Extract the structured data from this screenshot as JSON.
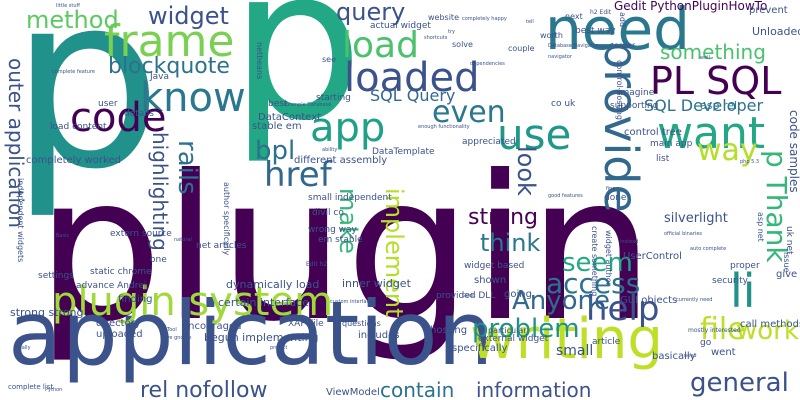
{
  "title": "",
  "words": [
    {
      "text": "plugin",
      "color": "#440154",
      "vertical": false
    },
    {
      "text": "p",
      "color": "#21918c",
      "vertical": false
    },
    {
      "text": "p",
      "color": "#22a884",
      "vertical": false
    },
    {
      "text": "application",
      "color": "#3b528b",
      "vertical": false
    },
    {
      "text": "plugin system",
      "color": "#a0da39",
      "vertical": false
    },
    {
      "text": "need",
      "color": "#2a788e",
      "vertical": false
    },
    {
      "text": "PL SQL",
      "color": "#440154",
      "vertical": false
    },
    {
      "text": "provide",
      "color": "#31688e",
      "vertical": true
    },
    {
      "text": "writing",
      "color": "#bddf26",
      "vertical": false
    },
    {
      "text": "loaded",
      "color": "#3b528b",
      "vertical": false
    },
    {
      "text": "frame",
      "color": "#7ad151",
      "vertical": false
    },
    {
      "text": "load",
      "color": "#4ac16d",
      "vertical": false
    },
    {
      "text": "know",
      "color": "#2a788e",
      "vertical": false
    },
    {
      "text": "code",
      "color": "#440154",
      "vertical": false
    },
    {
      "text": "app",
      "color": "#1fa187",
      "vertical": false
    },
    {
      "text": "use",
      "color": "#1f988b",
      "vertical": false
    },
    {
      "text": "want",
      "color": "#22a884",
      "vertical": false
    },
    {
      "text": "help",
      "color": "#3b528b",
      "vertical": false
    },
    {
      "text": "li",
      "color": "#21918c",
      "vertical": false
    },
    {
      "text": "file",
      "color": "#bddf26",
      "vertical": false
    },
    {
      "text": "access",
      "color": "#2c728e",
      "vertical": false
    },
    {
      "text": "href",
      "color": "#31688e",
      "vertical": false
    },
    {
      "text": "outer application",
      "color": "#3b528b",
      "vertical": true
    },
    {
      "text": "method",
      "color": "#5ec962",
      "vertical": false
    },
    {
      "text": "widget",
      "color": "#3b528b",
      "vertical": false
    },
    {
      "text": "blockquote",
      "color": "#2c728e",
      "vertical": false
    },
    {
      "text": "query",
      "color": "#3b528b",
      "vertical": false
    },
    {
      "text": "rails",
      "color": "#2c728e",
      "vertical": true
    },
    {
      "text": "highlighting",
      "color": "#3b528b",
      "vertical": true
    },
    {
      "text": "bpl",
      "color": "#2c728e",
      "vertical": false
    },
    {
      "text": "make",
      "color": "#35b779",
      "vertical": true
    },
    {
      "text": "implement",
      "color": "#b5de2b",
      "vertical": true
    },
    {
      "text": "even",
      "color": "#2a788e",
      "vertical": false
    },
    {
      "text": "look",
      "color": "#3b528b",
      "vertical": true
    },
    {
      "text": "strong",
      "color": "#440154",
      "vertical": false
    },
    {
      "text": "think",
      "color": "#2a788e",
      "vertical": false
    },
    {
      "text": "seem",
      "color": "#22a884",
      "vertical": false
    },
    {
      "text": "Anyone",
      "color": "#31688e",
      "vertical": false
    },
    {
      "text": "problem",
      "color": "#21918c",
      "vertical": false
    },
    {
      "text": "work",
      "color": "#bddf26",
      "vertical": false
    },
    {
      "text": "general",
      "color": "#3b528b",
      "vertical": false
    },
    {
      "text": "contain",
      "color": "#2c728e",
      "vertical": false
    },
    {
      "text": "information",
      "color": "#3b528b",
      "vertical": false
    },
    {
      "text": "rel nofollow",
      "color": "#3b528b",
      "vertical": false
    },
    {
      "text": "way",
      "color": "#b5de2b",
      "vertical": false
    },
    {
      "text": "p Thank",
      "color": "#35b779",
      "vertical": true
    },
    {
      "text": "something",
      "color": "#4ac16d",
      "vertical": false
    },
    {
      "text": "SQL Query",
      "color": "#31688e",
      "vertical": false
    },
    {
      "text": "SQL Developer",
      "color": "#2c728e",
      "vertical": false
    },
    {
      "text": "Gedit PythonPluginHowTo",
      "color": "#440154",
      "vertical": false
    },
    {
      "text": "Unloaded",
      "color": "#3b528b",
      "vertical": false
    },
    {
      "text": "prevent",
      "color": "#3b528b",
      "vertical": false
    },
    {
      "text": "code samples",
      "color": "#3b528b",
      "vertical": true
    },
    {
      "text": "asp rel",
      "color": "#2a788e",
      "vertical": false
    },
    {
      "text": "silverlight",
      "color": "#3b528b",
      "vertical": false
    },
    {
      "text": "control tree",
      "color": "#3b528b",
      "vertical": false
    },
    {
      "text": "DataContext",
      "color": "#3b528b",
      "vertical": false
    },
    {
      "text": "stable em",
      "color": "#3b528b",
      "vertical": false
    },
    {
      "text": "load content",
      "color": "#3b528b",
      "vertical": false
    },
    {
      "text": "completely worked",
      "color": "#3b528b",
      "vertical": false
    },
    {
      "text": "different assembly",
      "color": "#3b528b",
      "vertical": false
    },
    {
      "text": "dynamically load",
      "color": "#3b528b",
      "vertical": false
    },
    {
      "text": "inner widget",
      "color": "#3b528b",
      "vertical": false
    },
    {
      "text": "certain interface",
      "color": "#3b528b",
      "vertical": false
    },
    {
      "text": "begun implementing",
      "color": "#3b528b",
      "vertical": false
    },
    {
      "text": "strong strong",
      "color": "#3b528b",
      "vertical": false
    },
    {
      "text": "ViewModel",
      "color": "#3b528b",
      "vertical": false
    },
    {
      "text": "includes",
      "color": "#3b528b",
      "vertical": false
    },
    {
      "text": "hosting",
      "color": "#3b528b",
      "vertical": false
    },
    {
      "text": "specifically",
      "color": "#3b528b",
      "vertical": false
    },
    {
      "text": "small",
      "color": "#3b528b",
      "vertical": false
    },
    {
      "text": "article",
      "color": "#3b528b",
      "vertical": false
    },
    {
      "text": "call methods",
      "color": "#3b528b",
      "vertical": false
    },
    {
      "text": "give",
      "color": "#3b528b",
      "vertical": false
    },
    {
      "text": "security",
      "color": "#3b528b",
      "vertical": false
    },
    {
      "text": "proper",
      "color": "#3b528b",
      "vertical": false
    },
    {
      "text": "UserControl",
      "color": "#3b528b",
      "vertical": false
    },
    {
      "text": "GUI objects",
      "color": "#3b528b",
      "vertical": false
    },
    {
      "text": "basically",
      "color": "#3b528b",
      "vertical": false
    },
    {
      "text": "went",
      "color": "#3b528b",
      "vertical": false
    },
    {
      "text": "shown",
      "color": "#3b528b",
      "vertical": false
    },
    {
      "text": "going",
      "color": "#3b528b",
      "vertical": false
    },
    {
      "text": "finding",
      "color": "#3b528b",
      "vertical": false
    },
    {
      "text": "directory",
      "color": "#3b528b",
      "vertical": false
    },
    {
      "text": "uploaded",
      "color": "#3b528b",
      "vertical": false
    },
    {
      "text": "encouraged",
      "color": "#3b528b",
      "vertical": false
    },
    {
      "text": "settings",
      "color": "#3b528b",
      "vertical": false
    },
    {
      "text": "advance Andrej",
      "color": "#3b528b",
      "vertical": false
    },
    {
      "text": "extern source",
      "color": "#3b528b",
      "vertical": false
    },
    {
      "text": "net articles",
      "color": "#3b528b",
      "vertical": false
    },
    {
      "text": "em stable",
      "color": "#3b528b",
      "vertical": false
    },
    {
      "text": "wrong way",
      "color": "#3b528b",
      "vertical": false
    },
    {
      "text": "static chrome",
      "color": "#3b528b",
      "vertical": false
    },
    {
      "text": "one",
      "color": "#3b528b",
      "vertical": false
    },
    {
      "text": "divil co",
      "color": "#3b528b",
      "vertical": false
    },
    {
      "text": "small independent",
      "color": "#3b528b",
      "vertical": false
    },
    {
      "text": "widget based",
      "color": "#3b528b",
      "vertical": false
    },
    {
      "text": "DataTemplate",
      "color": "#3b528b",
      "vertical": false
    },
    {
      "text": "starting",
      "color": "#3b528b",
      "vertical": false
    },
    {
      "text": "best",
      "color": "#3b528b",
      "vertical": false
    },
    {
      "text": "co uk",
      "color": "#3b528b",
      "vertical": false
    },
    {
      "text": "appreciated",
      "color": "#3b528b",
      "vertical": false
    },
    {
      "text": "list",
      "color": "#3b528b",
      "vertical": false
    },
    {
      "text": "main app",
      "color": "#3b528b",
      "vertical": false
    },
    {
      "text": "imagine",
      "color": "#3b528b",
      "vertical": false
    },
    {
      "text": "supporting",
      "color": "#3b528b",
      "vertical": false
    },
    {
      "text": "done",
      "color": "#3b528b",
      "vertical": false
    },
    {
      "text": "user",
      "color": "#3b528b",
      "vertical": false
    },
    {
      "text": "details",
      "color": "#3b528b",
      "vertical": false
    },
    {
      "text": "Java",
      "color": "#3b528b",
      "vertical": false
    },
    {
      "text": "actual widget",
      "color": "#3b528b",
      "vertical": false
    },
    {
      "text": "website",
      "color": "#3b528b",
      "vertical": false
    },
    {
      "text": "next",
      "color": "#3b528b",
      "vertical": false
    },
    {
      "text": "best way",
      "color": "#3b528b",
      "vertical": false
    },
    {
      "text": "order",
      "color": "#3b528b",
      "vertical": false
    },
    {
      "text": "solve",
      "color": "#3b528b",
      "vertical": false
    },
    {
      "text": "couple",
      "color": "#3b528b",
      "vertical": false
    },
    {
      "text": "worth",
      "color": "#3b528b",
      "vertical": false
    },
    {
      "text": "see",
      "color": "#3b528b",
      "vertical": false
    },
    {
      "text": "XAP File",
      "color": "#3b528b",
      "vertical": false
    },
    {
      "text": "questions",
      "color": "#3b528b",
      "vertical": false
    },
    {
      "text": "particular",
      "color": "#3b528b",
      "vertical": false
    },
    {
      "text": "external widget",
      "color": "#3b528b",
      "vertical": false
    },
    {
      "text": "provided DLL",
      "color": "#3b528b",
      "vertical": false
    },
    {
      "text": "author specifically",
      "color": "#3b528b",
      "vertical": true
    },
    {
      "text": "independent widgets",
      "color": "#3b528b",
      "vertical": true
    },
    {
      "text": "netbeans",
      "color": "#3b528b",
      "vertical": true
    },
    {
      "text": "widget author",
      "color": "#3b528b",
      "vertical": true
    },
    {
      "text": "create something",
      "color": "#3b528b",
      "vertical": true
    },
    {
      "text": "control hosting",
      "color": "#3b528b",
      "vertical": true
    },
    {
      "text": "uk net",
      "color": "#3b528b",
      "vertical": true
    },
    {
      "text": "issue",
      "color": "#3b528b",
      "vertical": true
    },
    {
      "text": "add",
      "color": "#3b528b",
      "vertical": true
    },
    {
      "text": "asp net",
      "color": "#3b528b",
      "vertical": true
    },
    {
      "text": "mostly interested",
      "color": "#3b528b",
      "vertical": false
    },
    {
      "text": "h2 Edit",
      "color": "#3b528b",
      "vertical": false
    },
    {
      "text": "Edit h2",
      "color": "#3b528b",
      "vertical": false
    },
    {
      "text": "complete list",
      "color": "#3b528b",
      "vertical": false
    },
    {
      "text": "complete feature",
      "color": "#3b528b",
      "vertical": false
    },
    {
      "text": "little stuff",
      "color": "#3b528b",
      "vertical": false
    },
    {
      "text": "completely happy",
      "color": "#3b528b",
      "vertical": false
    },
    {
      "text": "Database Navigator",
      "color": "#3b528b",
      "vertical": false
    },
    {
      "text": "navigator",
      "color": "#3b528b",
      "vertical": false
    },
    {
      "text": "currently need",
      "color": "#3b528b",
      "vertical": false
    },
    {
      "text": "enough functionality",
      "color": "#3b528b",
      "vertical": false
    },
    {
      "text": "official binaries",
      "color": "#3b528b",
      "vertical": false
    },
    {
      "text": "auto complete",
      "color": "#3b528b",
      "vertical": false
    },
    {
      "text": "good features",
      "color": "#3b528b",
      "vertical": false
    },
    {
      "text": "try",
      "color": "#3b528b",
      "vertical": false
    },
    {
      "text": "tell",
      "color": "#3b528b",
      "vertical": false
    },
    {
      "text": "fine",
      "color": "#3b528b",
      "vertical": false
    },
    {
      "text": "Python",
      "color": "#3b528b",
      "vertical": false
    },
    {
      "text": "Ideally",
      "color": "#3b528b",
      "vertical": false
    },
    {
      "text": "Tool",
      "color": "#3b528b",
      "vertical": false
    },
    {
      "text": "love gnome",
      "color": "#3b528b",
      "vertical": false
    },
    {
      "text": "php 5.3",
      "color": "#3b528b",
      "vertical": false
    },
    {
      "text": "Basic",
      "color": "#3b528b",
      "vertical": false
    },
    {
      "text": "go",
      "color": "#3b528b",
      "vertical": false
    },
    {
      "text": "need",
      "color": "#3b528b",
      "vertical": false
    },
    {
      "text": "project",
      "color": "#3b528b",
      "vertical": false
    },
    {
      "text": "instead",
      "color": "#3b528b",
      "vertical": false
    },
    {
      "text": "Example Database",
      "color": "#3b528b",
      "vertical": false
    },
    {
      "text": "well",
      "color": "#3b528b",
      "vertical": false
    },
    {
      "text": "ability",
      "color": "#3b528b",
      "vertical": false
    },
    {
      "text": "natural",
      "color": "#3b528b",
      "vertical": false
    },
    {
      "text": "custom interface",
      "color": "#3b528b",
      "vertical": false
    },
    {
      "text": "Gedit",
      "color": "#3b528b",
      "vertical": false
    },
    {
      "text": "shortcuts",
      "color": "#3b528b",
      "vertical": false
    },
    {
      "text": "dependencies",
      "color": "#3b528b",
      "vertical": false
    }
  ]
}
